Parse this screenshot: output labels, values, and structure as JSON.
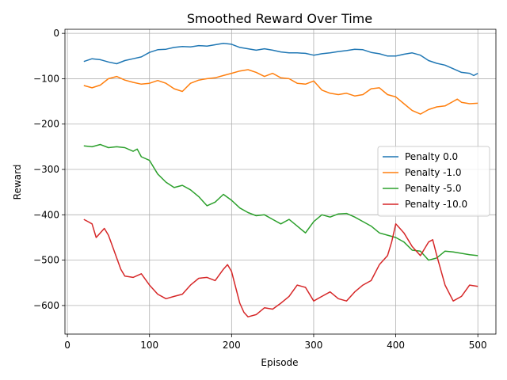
{
  "chart_data": {
    "type": "line",
    "title": "Smoothed Reward Over Time",
    "xlabel": "Episode",
    "ylabel": "Reward",
    "xlim": [
      -3,
      522
    ],
    "ylim": [
      -663,
      9
    ],
    "xticks": [
      0,
      100,
      200,
      300,
      400,
      500
    ],
    "yticks": [
      0,
      -100,
      -200,
      -300,
      -400,
      -500,
      -600
    ],
    "grid": true,
    "legend_position": "center-right",
    "series": [
      {
        "name": "Penalty 0.0",
        "color": "#1f77b4",
        "x": [
          20,
          30,
          40,
          50,
          60,
          70,
          80,
          90,
          100,
          110,
          120,
          130,
          140,
          150,
          160,
          170,
          180,
          190,
          200,
          210,
          220,
          230,
          240,
          250,
          260,
          270,
          280,
          290,
          300,
          310,
          320,
          330,
          340,
          350,
          360,
          370,
          380,
          390,
          400,
          410,
          420,
          430,
          440,
          450,
          460,
          470,
          480,
          490,
          495,
          500
        ],
        "y": [
          -62,
          -56,
          -58,
          -63,
          -67,
          -60,
          -56,
          -52,
          -42,
          -36,
          -35,
          -31,
          -29,
          -30,
          -27,
          -28,
          -25,
          -22,
          -24,
          -31,
          -34,
          -37,
          -34,
          -37,
          -41,
          -43,
          -43,
          -44,
          -48,
          -45,
          -43,
          -40,
          -38,
          -35,
          -36,
          -42,
          -45,
          -50,
          -50,
          -46,
          -43,
          -48,
          -60,
          -66,
          -70,
          -78,
          -86,
          -88,
          -93,
          -88
        ]
      },
      {
        "name": "Penalty -1.0",
        "color": "#ff7f0e",
        "x": [
          20,
          30,
          40,
          50,
          60,
          70,
          80,
          90,
          100,
          110,
          120,
          130,
          140,
          150,
          160,
          170,
          180,
          190,
          200,
          210,
          220,
          230,
          240,
          250,
          260,
          270,
          280,
          290,
          300,
          310,
          320,
          330,
          340,
          350,
          360,
          370,
          380,
          390,
          400,
          410,
          420,
          430,
          440,
          450,
          460,
          470,
          475,
          480,
          490,
          500
        ],
        "y": [
          -115,
          -120,
          -114,
          -100,
          -95,
          -103,
          -108,
          -112,
          -110,
          -104,
          -110,
          -122,
          -128,
          -110,
          -103,
          -100,
          -98,
          -93,
          -88,
          -83,
          -80,
          -86,
          -95,
          -88,
          -98,
          -100,
          -110,
          -112,
          -105,
          -125,
          -132,
          -135,
          -132,
          -138,
          -135,
          -122,
          -120,
          -135,
          -140,
          -155,
          -170,
          -178,
          -168,
          -162,
          -160,
          -150,
          -145,
          -152,
          -155,
          -154
        ]
      },
      {
        "name": "Penalty -5.0",
        "color": "#2ca02c",
        "x": [
          20,
          30,
          40,
          50,
          60,
          70,
          80,
          85,
          90,
          100,
          110,
          120,
          130,
          140,
          150,
          160,
          170,
          180,
          190,
          200,
          210,
          220,
          230,
          240,
          250,
          260,
          270,
          280,
          290,
          300,
          310,
          320,
          330,
          340,
          350,
          360,
          370,
          380,
          390,
          400,
          410,
          420,
          430,
          440,
          450,
          460,
          470,
          480,
          490,
          500
        ],
        "y": [
          -248,
          -250,
          -245,
          -252,
          -250,
          -252,
          -260,
          -255,
          -272,
          -280,
          -310,
          -328,
          -340,
          -335,
          -345,
          -360,
          -380,
          -372,
          -355,
          -368,
          -385,
          -395,
          -402,
          -400,
          -410,
          -420,
          -410,
          -425,
          -440,
          -415,
          -400,
          -405,
          -398,
          -397,
          -405,
          -415,
          -425,
          -440,
          -445,
          -450,
          -460,
          -478,
          -480,
          -500,
          -495,
          -480,
          -482,
          -485,
          -488,
          -490
        ]
      },
      {
        "name": "Penalty -10.0",
        "color": "#d62728",
        "x": [
          20,
          25,
          30,
          35,
          40,
          45,
          50,
          55,
          60,
          65,
          70,
          80,
          90,
          100,
          110,
          120,
          130,
          140,
          150,
          160,
          170,
          180,
          190,
          195,
          200,
          205,
          210,
          215,
          220,
          230,
          240,
          250,
          260,
          270,
          280,
          290,
          300,
          310,
          320,
          330,
          340,
          350,
          360,
          370,
          380,
          390,
          395,
          400,
          405,
          410,
          420,
          430,
          440,
          445,
          450,
          460,
          470,
          480,
          490,
          500
        ],
        "y": [
          -410,
          -415,
          -420,
          -450,
          -440,
          -430,
          -445,
          -470,
          -495,
          -520,
          -535,
          -538,
          -530,
          -555,
          -575,
          -585,
          -580,
          -575,
          -555,
          -540,
          -538,
          -545,
          -520,
          -510,
          -525,
          -560,
          -595,
          -615,
          -625,
          -620,
          -605,
          -608,
          -595,
          -580,
          -555,
          -560,
          -590,
          -580,
          -570,
          -585,
          -590,
          -570,
          -555,
          -545,
          -510,
          -490,
          -460,
          -420,
          -430,
          -440,
          -470,
          -490,
          -460,
          -455,
          -490,
          -555,
          -590,
          -580,
          -555,
          -558
        ]
      }
    ]
  }
}
